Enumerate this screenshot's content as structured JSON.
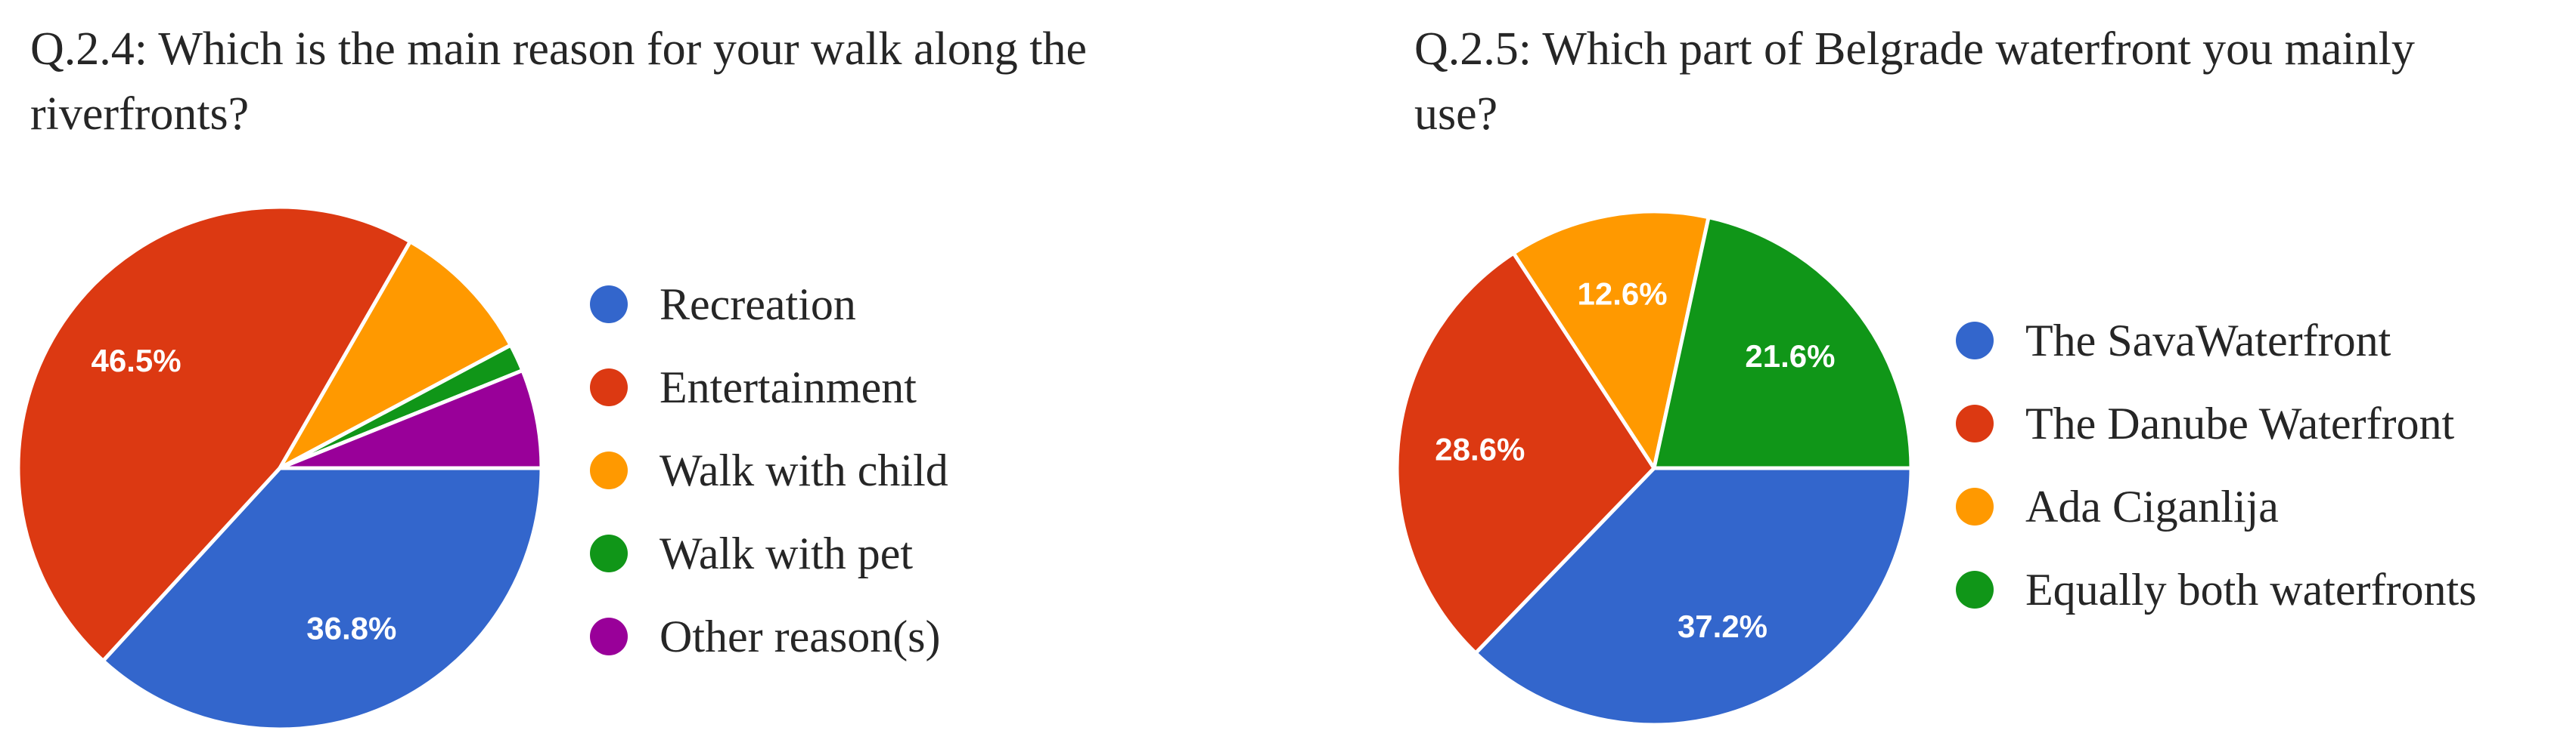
{
  "chart_data": [
    {
      "type": "pie",
      "title": "Q.2.4: Which is the main reason for your walk along the riverfronts?",
      "legend_position": "right",
      "slices": [
        {
          "label": "Recreation",
          "value": 36.8,
          "value_label": "36.8%",
          "color": "#3366cc"
        },
        {
          "label": "Entertainment",
          "value": 46.5,
          "value_label": "46.5%",
          "color": "#dc3912"
        },
        {
          "label": "Walk with child",
          "value": 8.9,
          "value_label": "",
          "color": "#ff9900"
        },
        {
          "label": "Walk with pet",
          "value": 1.7,
          "value_label": "",
          "color": "#109618"
        },
        {
          "label": "Other reason(s)",
          "value": 6.1,
          "value_label": "",
          "color": "#990099"
        }
      ]
    },
    {
      "type": "pie",
      "title": "Q.2.5: Which part of Belgrade waterfront you mainly use?",
      "legend_position": "right",
      "slices": [
        {
          "label": "The SavaWaterfront",
          "value": 37.2,
          "value_label": "37.2%",
          "color": "#3366cc"
        },
        {
          "label": "The Danube Waterfront",
          "value": 28.6,
          "value_label": "28.6%",
          "color": "#dc3912"
        },
        {
          "label": "Ada Ciganlija",
          "value": 12.6,
          "value_label": "12.6%",
          "color": "#ff9900"
        },
        {
          "label": "Equally both waterfronts",
          "value": 21.6,
          "value_label": "21.6%",
          "color": "#109618"
        }
      ]
    }
  ]
}
